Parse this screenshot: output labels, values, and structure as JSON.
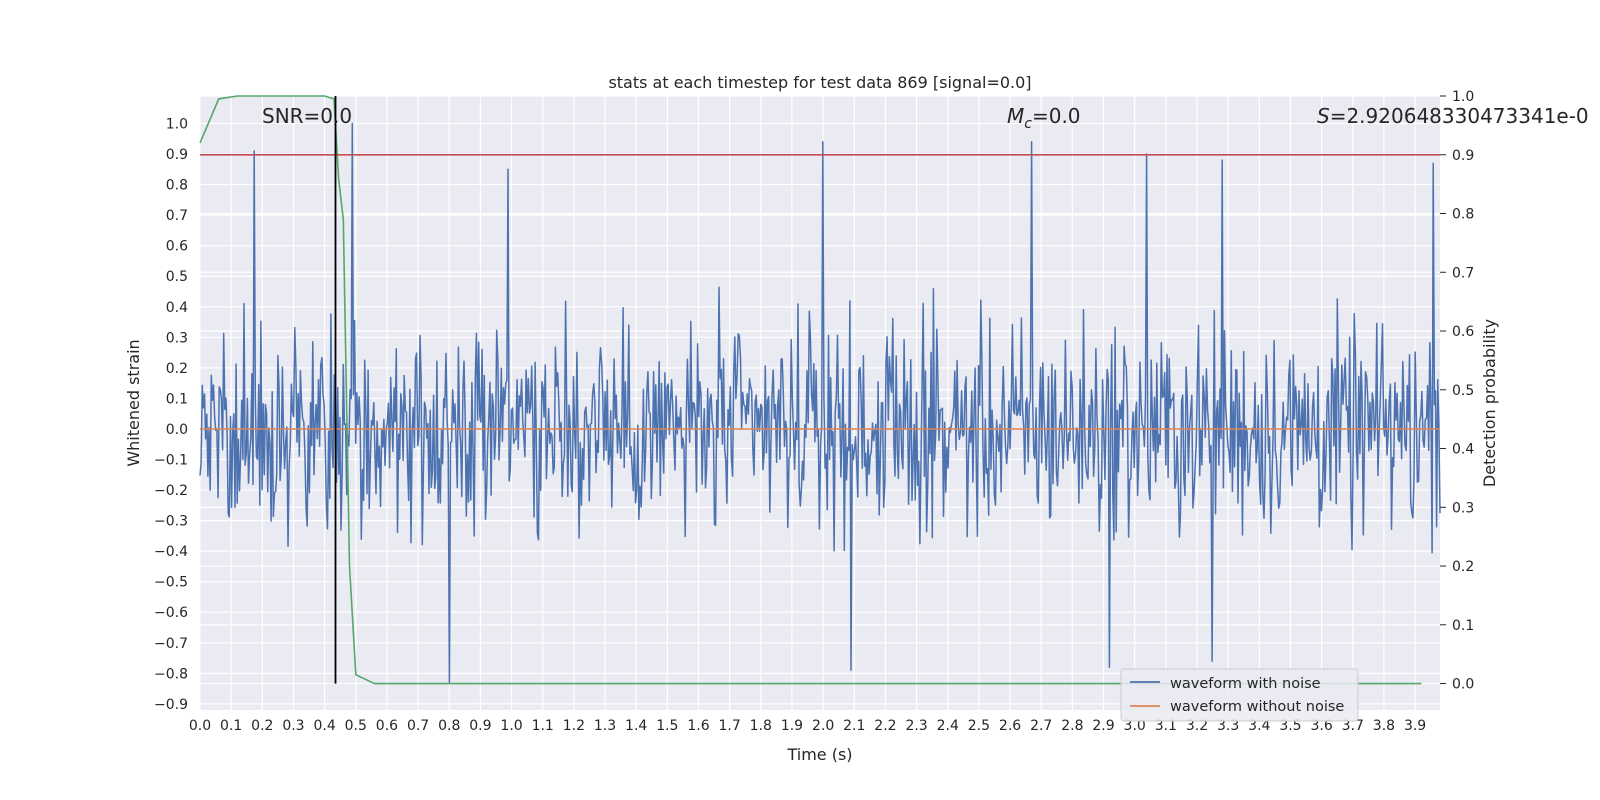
{
  "chart_data": {
    "type": "line",
    "title": "stats at each timestep for test data 869 [signal=0.0]",
    "xlabel": "Time (s)",
    "ylabel": "Whitened strain",
    "y2label": "Detection probability",
    "xlim": [
      0.0,
      3.98
    ],
    "ylim": [
      -0.92,
      1.09
    ],
    "y2lim": [
      -0.045,
      1.0
    ],
    "x_ticks": [
      "0.0",
      "0.1",
      "0.2",
      "0.3",
      "0.4",
      "0.5",
      "0.6",
      "0.7",
      "0.8",
      "0.9",
      "1.0",
      "1.1",
      "1.2",
      "1.3",
      "1.4",
      "1.5",
      "1.6",
      "1.7",
      "1.8",
      "1.9",
      "2.0",
      "2.1",
      "2.2",
      "2.3",
      "2.4",
      "2.5",
      "2.6",
      "2.7",
      "2.8",
      "2.9",
      "3.0",
      "3.1",
      "3.2",
      "3.3",
      "3.4",
      "3.5",
      "3.6",
      "3.7",
      "3.8",
      "3.9"
    ],
    "y_ticks": [
      "1.0",
      "0.9",
      "0.8",
      "0.7",
      "0.6",
      "0.5",
      "0.4",
      "0.3",
      "0.2",
      "0.1",
      "0.0",
      "−0.1",
      "−0.2",
      "−0.3",
      "−0.4",
      "−0.5",
      "−0.6",
      "−0.7",
      "−0.8",
      "−0.9"
    ],
    "y2_ticks": [
      "1.0",
      "0.9",
      "0.8",
      "0.7",
      "0.6",
      "0.5",
      "0.4",
      "0.3",
      "0.2",
      "0.1",
      "0.0"
    ],
    "annotations": {
      "snr": "SNR=0.0",
      "mc_symbol": "M",
      "mc_sub": "c",
      "mc_value": "=0.0",
      "s_symbol": "S",
      "s_value": "=2.920648330473341e-0"
    },
    "grid": true,
    "legend_position": "lower right",
    "series": [
      {
        "name": "waveform with noise",
        "color": "#4c72b0",
        "note": "dense whitened noise, amplitude mostly within ±0.5, spikes up to ~1.0 and down to ~-0.83",
        "peaks": [
          {
            "x": 0.175,
            "y": 0.91
          },
          {
            "x": 0.49,
            "y": 1.0
          },
          {
            "x": 0.99,
            "y": 0.85
          },
          {
            "x": 2.0,
            "y": 0.94
          },
          {
            "x": 2.67,
            "y": 0.94
          },
          {
            "x": 3.04,
            "y": 0.9
          },
          {
            "x": 3.28,
            "y": 0.88
          },
          {
            "x": 3.96,
            "y": 0.87
          }
        ],
        "troughs": [
          {
            "x": 0.8,
            "y": -0.83
          },
          {
            "x": 2.09,
            "y": -0.79
          },
          {
            "x": 3.25,
            "y": -0.76
          },
          {
            "x": 2.92,
            "y": -0.78
          }
        ]
      },
      {
        "name": "waveform without noise",
        "color": "#dd8452",
        "x": [
          0.0,
          3.98
        ],
        "y": [
          0.0,
          0.0
        ]
      },
      {
        "color": "#55a868",
        "axis": "right",
        "x": [
          0.0,
          0.06,
          0.12,
          0.2,
          0.3,
          0.36,
          0.4,
          0.43,
          0.445,
          0.46,
          0.48,
          0.5,
          0.56,
          0.7,
          1.0,
          2.0,
          3.0,
          3.92
        ],
        "y": [
          0.92,
          0.995,
          1.0,
          1.0,
          1.0,
          1.0,
          1.0,
          0.995,
          0.86,
          0.79,
          0.2,
          0.015,
          0.0,
          0.0,
          0.0,
          0.0,
          0.0,
          0.0
        ]
      },
      {
        "color": "#c44e52",
        "axis": "right",
        "x": [
          0.0,
          3.98
        ],
        "y": [
          0.9,
          0.9
        ]
      },
      {
        "color": "#000000",
        "axis": "right",
        "x": [
          0.435,
          0.435
        ],
        "y": [
          0.0,
          1.0
        ]
      }
    ]
  }
}
